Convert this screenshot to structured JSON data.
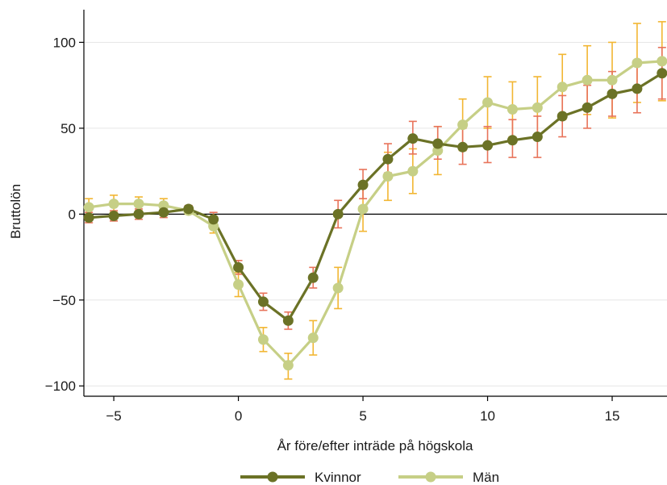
{
  "chart_data": {
    "type": "line",
    "xlabel": "År före/efter inträde på högskola",
    "ylabel": "Bruttolön",
    "xlim": [
      -6.2,
      17.2
    ],
    "ylim": [
      -106,
      119
    ],
    "x_ticks": [
      -5,
      0,
      5,
      10,
      15
    ],
    "x_tick_labels": [
      "−5",
      "0",
      "5",
      "10",
      "15"
    ],
    "y_ticks": [
      -100,
      -50,
      0,
      50,
      100
    ],
    "y_tick_labels": [
      "−100",
      "−50",
      "0",
      "50",
      "100"
    ],
    "grid": true,
    "zero_line": true,
    "legend_position": "bottom",
    "x": [
      -6,
      -5,
      -4,
      -3,
      -2,
      -1,
      0,
      1,
      2,
      3,
      4,
      5,
      6,
      7,
      8,
      9,
      10,
      11,
      12,
      13,
      14,
      15,
      16,
      17
    ],
    "series": [
      {
        "name": "Kvinnor",
        "color": "#6b7226",
        "ci_color": "#e8735a",
        "values": [
          -2,
          -1,
          0,
          1,
          3,
          -3,
          -31,
          -51,
          -62,
          -37,
          0,
          17,
          32,
          44,
          41,
          39,
          40,
          43,
          45,
          57,
          62,
          70,
          73,
          82
        ],
        "ci_lower": [
          -5,
          -4,
          -3,
          -2,
          1,
          -7,
          -35,
          -56,
          -67,
          -43,
          -8,
          9,
          24,
          35,
          32,
          29,
          30,
          33,
          33,
          45,
          50,
          57,
          59,
          67
        ],
        "ci_upper": [
          1,
          2,
          3,
          4,
          5,
          1,
          -27,
          -46,
          -57,
          -31,
          8,
          26,
          41,
          54,
          51,
          50,
          51,
          55,
          57,
          69,
          75,
          83,
          87,
          97
        ]
      },
      {
        "name": "Män",
        "color": "#c6cf86",
        "ci_color": "#f2b632",
        "values": [
          4,
          6,
          6,
          5,
          2,
          -7,
          -41,
          -73,
          -88,
          -72,
          -43,
          3,
          22,
          25,
          37,
          52,
          65,
          61,
          62,
          74,
          78,
          78,
          88,
          89
        ],
        "ci_lower": [
          -1,
          1,
          2,
          1,
          0,
          -11,
          -48,
          -80,
          -96,
          -82,
          -55,
          -10,
          8,
          12,
          23,
          37,
          50,
          45,
          44,
          55,
          58,
          56,
          65,
          66
        ],
        "ci_upper": [
          9,
          11,
          10,
          9,
          4,
          -3,
          -34,
          -66,
          -81,
          -62,
          -31,
          16,
          36,
          38,
          51,
          67,
          80,
          77,
          80,
          93,
          98,
          100,
          111,
          112
        ]
      }
    ]
  }
}
